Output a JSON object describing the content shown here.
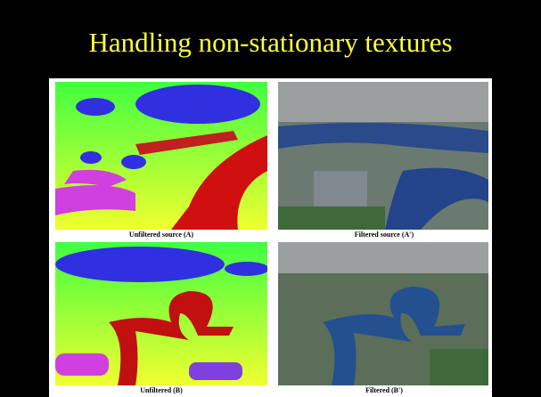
{
  "title": "Handling non-stationary textures",
  "figures": [
    {
      "caption": "Unfiltered source (A)"
    },
    {
      "caption": "Filtered source (A′)"
    },
    {
      "caption": "Unfiltered (B)"
    },
    {
      "caption": "Filtered (B′)"
    }
  ]
}
